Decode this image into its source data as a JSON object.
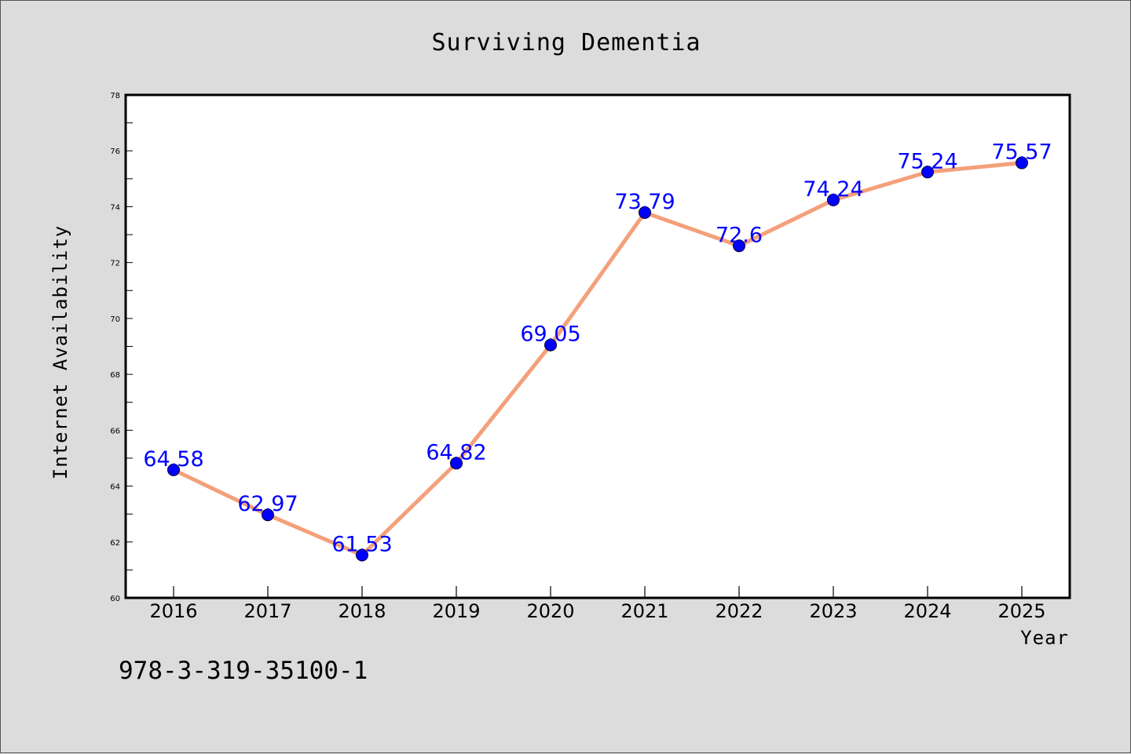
{
  "chart_data": {
    "type": "line",
    "title": "Surviving Dementia",
    "xlabel": "Year",
    "ylabel": "Internet Availability",
    "categories": [
      "2016",
      "2017",
      "2018",
      "2019",
      "2020",
      "2021",
      "2022",
      "2023",
      "2024",
      "2025"
    ],
    "series": [
      {
        "values": [
          64.58,
          62.97,
          61.53,
          64.82,
          69.05,
          73.79,
          72.6,
          74.24,
          75.24,
          75.57
        ],
        "data_labels": [
          "64.58",
          "62.97",
          "61.53",
          "64.82",
          "69.05",
          "73.79",
          "72.6",
          "74.24",
          "75.24",
          "75.57"
        ],
        "line_color": "#f4a07a",
        "marker_color": "#0000ff"
      }
    ],
    "ylim": [
      60,
      78
    ],
    "yticks": [
      60,
      62,
      64,
      66,
      68,
      70,
      72,
      74,
      76,
      78
    ],
    "ytick_labels": [
      "60",
      "62",
      "64",
      "66",
      "68",
      "70",
      "72",
      "74",
      "76",
      "78"
    ],
    "grid": false,
    "legend": "none"
  },
  "footer_text": "978-3-319-35100-1",
  "colors": {
    "background": "#dcdcdc",
    "plot_background": "#ffffff",
    "data_label": "#0000ff"
  }
}
